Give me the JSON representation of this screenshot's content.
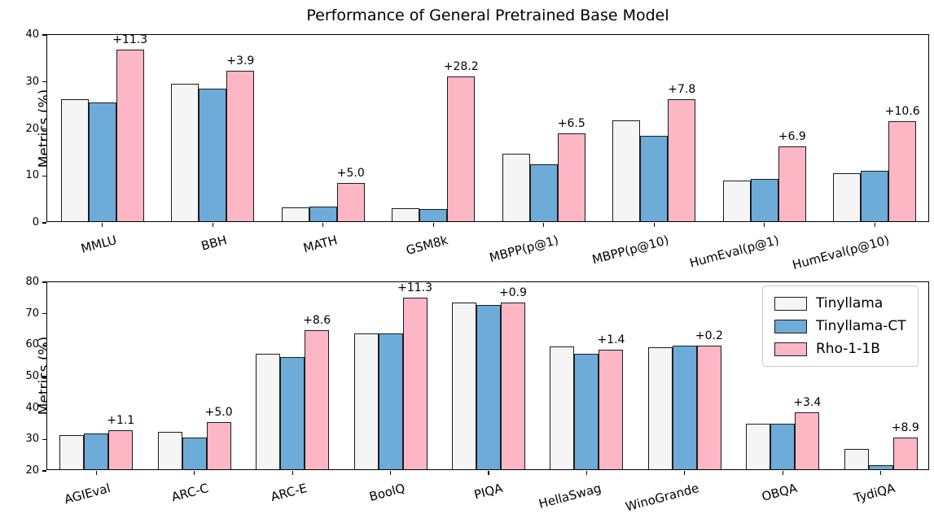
{
  "figure": {
    "title": "Performance of General Pretrained Base Model"
  },
  "colors": {
    "tinyllama": "#f5f5f5",
    "tinyllama_ct": "#6dabd9",
    "rho_1_1b": "#fdb6c3",
    "bar_edge": "#1c1c1c",
    "axis": "#000000",
    "legend_border": "#cccccc"
  },
  "legend": {
    "location": "upper-right-of-bottom-subplot",
    "items": [
      {
        "label": "Tinyllama",
        "color_key": "tinyllama"
      },
      {
        "label": "Tinyllama-CT",
        "color_key": "tinyllama_ct"
      },
      {
        "label": "Rho-1-1B",
        "color_key": "rho_1_1b"
      }
    ]
  },
  "chart_data": [
    {
      "type": "bar",
      "subplot": "top",
      "title": "Performance of General Pretrained Base Model",
      "xlabel": "",
      "ylabel": "Metrics (%)",
      "ylim": [
        0,
        40
      ],
      "yticks": [
        0,
        10,
        20,
        30,
        40
      ],
      "grid": false,
      "categories": [
        "MMLU",
        "BBH",
        "MATH",
        "GSM8k",
        "MBPP(p@1)",
        "MBPP(p@10)",
        "HumEval(p@1)",
        "HumEval(p@10)"
      ],
      "series": [
        {
          "name": "Tinyllama",
          "color_key": "tinyllama",
          "values": [
            25.9,
            29.3,
            3.0,
            2.8,
            14.3,
            21.5,
            8.6,
            10.2
          ]
        },
        {
          "name": "Tinyllama-CT",
          "color_key": "tinyllama_ct",
          "values": [
            25.3,
            28.2,
            3.2,
            2.6,
            12.2,
            18.2,
            9.0,
            10.7
          ]
        },
        {
          "name": "Rho-1-1B",
          "color_key": "rho_1_1b",
          "values": [
            36.6,
            32.1,
            8.2,
            30.8,
            18.7,
            26.0,
            15.9,
            21.3
          ]
        }
      ],
      "annotations": [
        "+11.3",
        "+3.9",
        "+5.0",
        "+28.2",
        "+6.5",
        "+7.8",
        "+6.9",
        "+10.6"
      ],
      "annotation_over_series": "Rho-1-1B"
    },
    {
      "type": "bar",
      "subplot": "bottom",
      "title": "",
      "xlabel": "",
      "ylabel": "Metrics (%)",
      "ylim": [
        20,
        80
      ],
      "yticks": [
        20,
        30,
        40,
        50,
        60,
        70,
        80
      ],
      "grid": false,
      "categories": [
        "AGIEval",
        "ARC-C",
        "ARC-E",
        "BoolQ",
        "PIQA",
        "HellaSwag",
        "WinoGrande",
        "OBQA",
        "TydiQA"
      ],
      "series": [
        {
          "name": "Tinyllama",
          "color_key": "tinyllama",
          "values": [
            30.9,
            32.0,
            56.8,
            63.2,
            73.0,
            59.1,
            58.8,
            34.4,
            26.4
          ]
        },
        {
          "name": "Tinyllama-CT",
          "color_key": "tinyllama_ct",
          "values": [
            31.3,
            30.0,
            55.7,
            63.3,
            72.2,
            56.6,
            59.2,
            34.6,
            21.2
          ]
        },
        {
          "name": "Rho-1-1B",
          "color_key": "rho_1_1b",
          "values": [
            32.4,
            35.0,
            64.3,
            74.6,
            73.1,
            58.0,
            59.4,
            38.0,
            30.1
          ]
        }
      ],
      "annotations": [
        "+1.1",
        "+5.0",
        "+8.6",
        "+11.3",
        "+0.9",
        "+1.4",
        "+0.2",
        "+3.4",
        "+8.9"
      ],
      "annotation_over_series": "Rho-1-1B"
    }
  ]
}
